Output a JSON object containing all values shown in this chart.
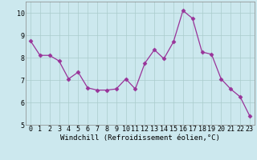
{
  "x": [
    0,
    1,
    2,
    3,
    4,
    5,
    6,
    7,
    8,
    9,
    10,
    11,
    12,
    13,
    14,
    15,
    16,
    17,
    18,
    19,
    20,
    21,
    22,
    23
  ],
  "y": [
    8.75,
    8.1,
    8.1,
    7.85,
    7.05,
    7.35,
    6.65,
    6.55,
    6.55,
    6.6,
    7.05,
    6.6,
    7.75,
    8.35,
    7.95,
    8.7,
    10.1,
    9.75,
    8.25,
    8.15,
    7.05,
    6.6,
    6.25,
    5.4
  ],
  "line_color": "#993399",
  "marker": "D",
  "marker_size": 2.5,
  "bg_color": "#cce8ee",
  "grid_color": "#aacccc",
  "xlabel": "Windchill (Refroidissement éolien,°C)",
  "xlim": [
    -0.5,
    23.5
  ],
  "ylim": [
    5,
    10.5
  ],
  "yticks": [
    5,
    6,
    7,
    8,
    9,
    10
  ],
  "xticks": [
    0,
    1,
    2,
    3,
    4,
    5,
    6,
    7,
    8,
    9,
    10,
    11,
    12,
    13,
    14,
    15,
    16,
    17,
    18,
    19,
    20,
    21,
    22,
    23
  ],
  "tick_fontsize": 6.0,
  "xlabel_fontsize": 6.5
}
